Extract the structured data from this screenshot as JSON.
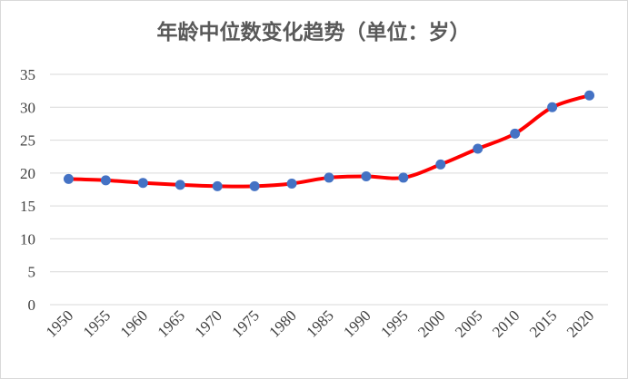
{
  "chart_data": {
    "type": "line",
    "title": "年龄中位数变化趋势（单位：岁）",
    "xlabel": "",
    "ylabel": "",
    "categories": [
      "1950",
      "1955",
      "1960",
      "1965",
      "1970",
      "1975",
      "1980",
      "1985",
      "1990",
      "1995",
      "2000",
      "2005",
      "2010",
      "2015",
      "2020"
    ],
    "series": [
      {
        "values": [
          19.1,
          18.9,
          18.5,
          18.2,
          18.0,
          18.0,
          18.4,
          19.3,
          19.5,
          19.3,
          21.3,
          23.7,
          26.0,
          30.0,
          31.8
        ]
      }
    ],
    "ylim": [
      0,
      35
    ],
    "yticks": [
      "0",
      "5",
      "10",
      "15",
      "20",
      "25",
      "30",
      "35"
    ],
    "grid": "horizontal",
    "legend": "none",
    "line_color": "#ff0000",
    "marker_color": "#4472c4"
  }
}
